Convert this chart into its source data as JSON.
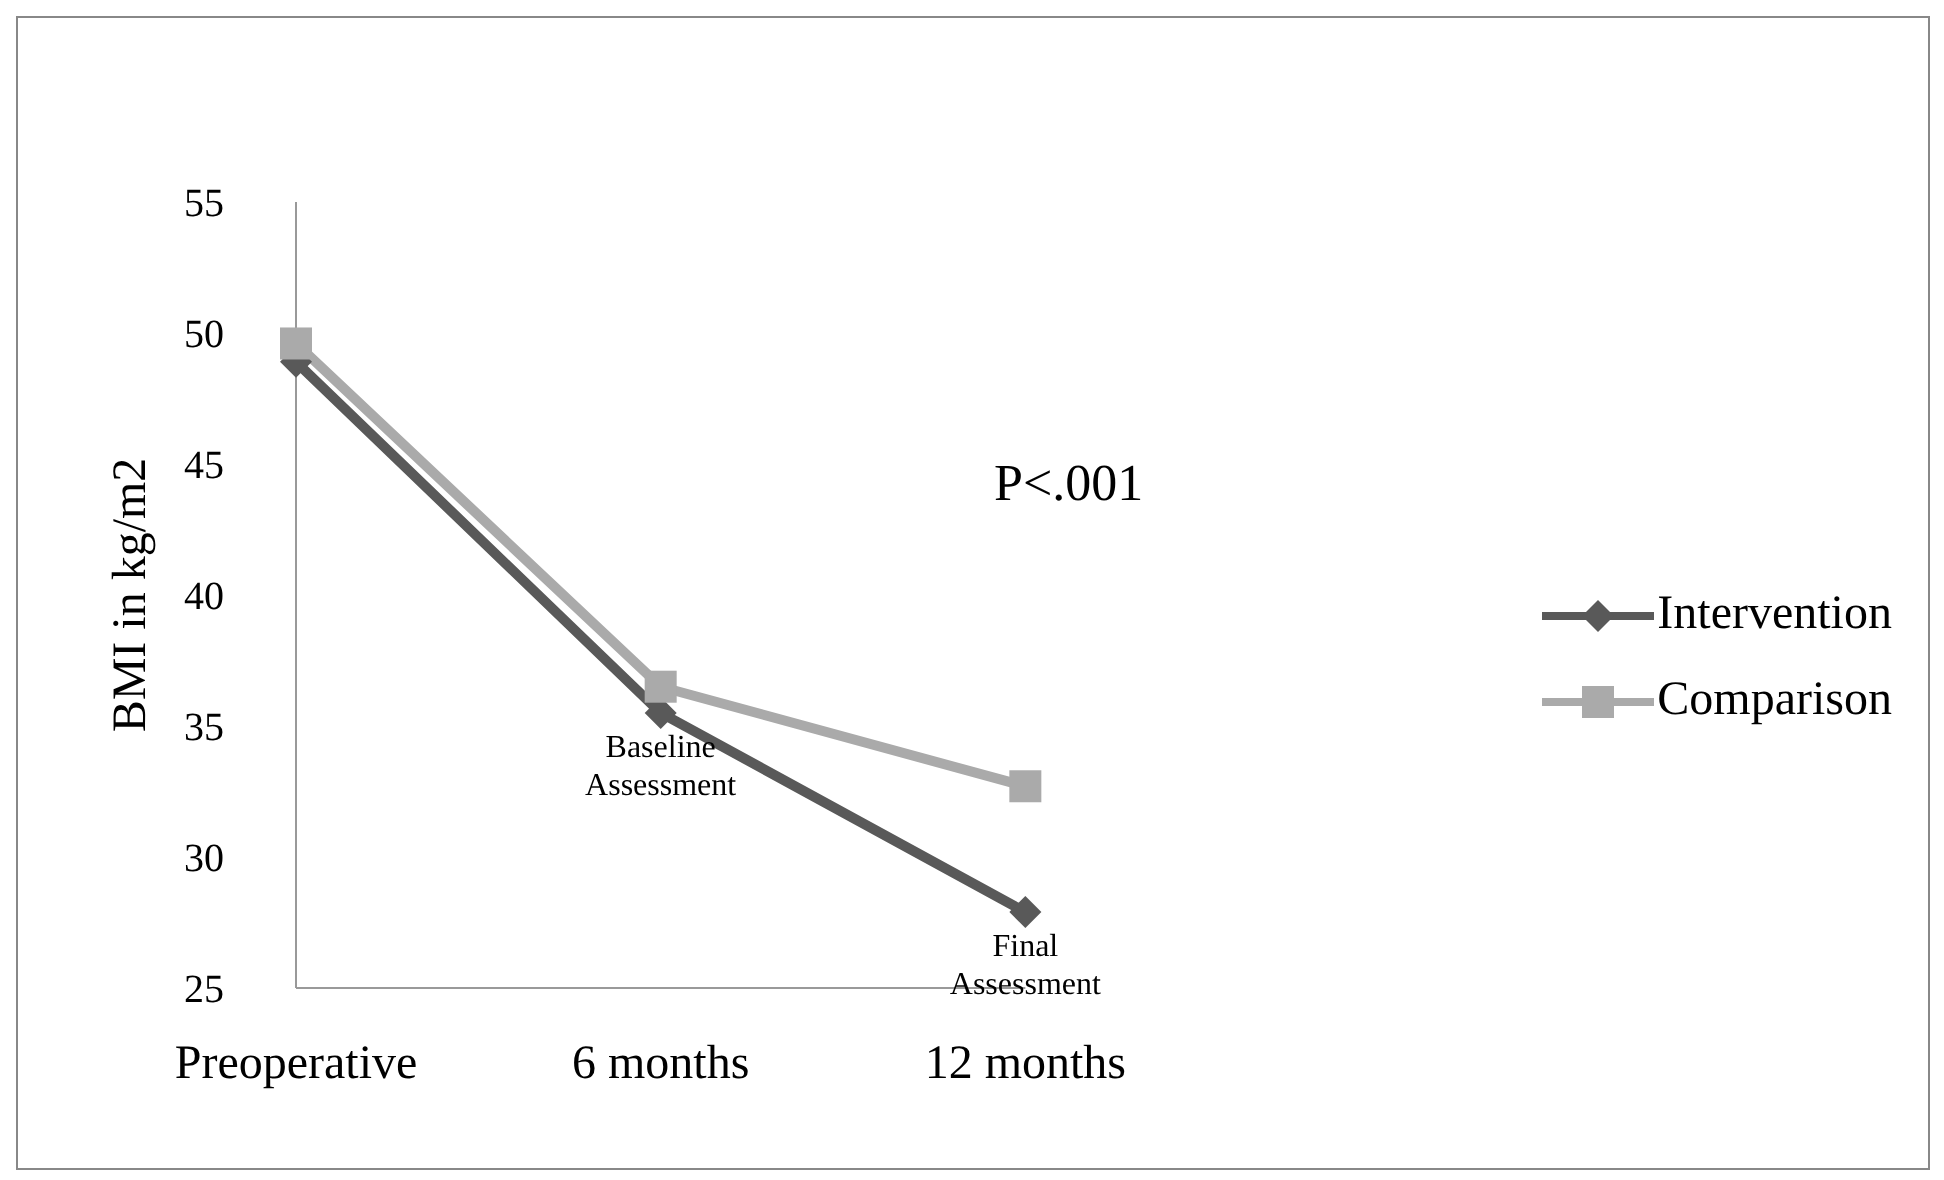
{
  "chart_data": {
    "type": "line",
    "ylabel": "BMI in kg/m2",
    "categories": [
      "Preoperative",
      "6 months",
      "12 months"
    ],
    "series": [
      {
        "name": "Intervention",
        "color": "#595959",
        "marker": "diamond",
        "values": [
          48.9,
          35.5,
          27.9
        ]
      },
      {
        "name": "Comparison",
        "color": "#aaaaaa",
        "marker": "square",
        "values": [
          49.6,
          36.5,
          32.7
        ]
      }
    ],
    "ylim": [
      25,
      55
    ],
    "yticks": [
      25,
      30,
      35,
      40,
      45,
      50,
      55
    ],
    "grid": false,
    "legend": "right",
    "annotations": [
      "P<.001",
      {
        "text": "Baseline Assessment",
        "x": "6 months",
        "y": 35.5
      },
      {
        "text": "Final Assessment",
        "x": "12 months",
        "y": 27.9
      }
    ]
  }
}
